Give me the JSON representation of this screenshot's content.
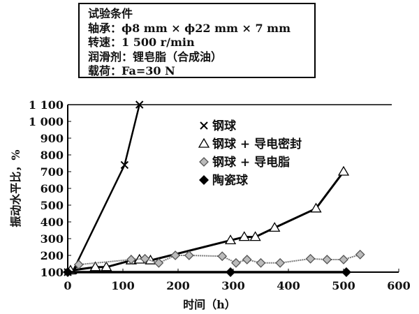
{
  "conditions": {
    "title": "试验条件",
    "lines": [
      "轴承：ϕ8 mm × ϕ22 mm × 7 mm",
      "转速：1 500 r/min",
      "润滑剂：锂皂脂（合成油）",
      "载荷：Fa=30 N"
    ]
  },
  "chart_data": {
    "type": "line",
    "xlabel": "时间（h）",
    "ylabel": "振动水平比，%",
    "xlim": [
      0,
      600
    ],
    "ylim": [
      100,
      1100
    ],
    "xticks": [
      0,
      100,
      200,
      300,
      400,
      500,
      600
    ],
    "yticks": [
      100,
      200,
      300,
      400,
      500,
      600,
      700,
      800,
      900,
      1000,
      1100
    ],
    "ytick_labels": [
      "100",
      "200",
      "300",
      "400",
      "500",
      "600",
      "700",
      "800",
      "900",
      "1 000",
      "1 100"
    ],
    "legend_position": "top-right",
    "series": [
      {
        "name": "钢球",
        "marker": "x",
        "x": [
          0,
          10,
          103,
          130
        ],
        "y": [
          100,
          110,
          740,
          1100
        ]
      },
      {
        "name": "钢球 + 导电密封",
        "marker": "triangle",
        "x": [
          5,
          50,
          70,
          115,
          130,
          150,
          295,
          320,
          340,
          375,
          450,
          500
        ],
        "y": [
          110,
          130,
          130,
          170,
          175,
          170,
          290,
          310,
          310,
          365,
          480,
          700
        ]
      },
      {
        "name": "钢球 + 导电脂",
        "marker": "diamond-gray",
        "x": [
          20,
          115,
          140,
          165,
          195,
          220,
          280,
          305,
          325,
          350,
          385,
          440,
          470,
          500,
          530
        ],
        "y": [
          145,
          175,
          180,
          155,
          200,
          200,
          195,
          155,
          175,
          155,
          155,
          180,
          175,
          175,
          205
        ]
      },
      {
        "name": "陶瓷球",
        "marker": "diamond-black",
        "x": [
          0,
          295,
          505
        ],
        "y": [
          100,
          100,
          100
        ]
      }
    ]
  }
}
